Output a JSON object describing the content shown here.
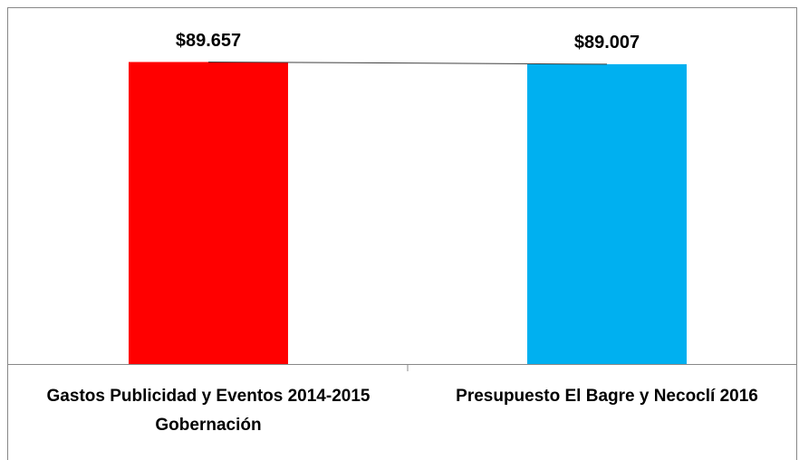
{
  "chart_data": {
    "type": "bar",
    "categories": [
      "Gastos Publicidad y Eventos 2014-2015 Gobernación",
      "Presupuesto El Bagre y Necoclí 2016"
    ],
    "values": [
      89657,
      89007
    ],
    "value_labels": [
      "$89.657",
      "$89.007"
    ],
    "colors": [
      "#ff0000",
      "#00b0f0"
    ],
    "ylim": [
      0,
      100000
    ]
  }
}
